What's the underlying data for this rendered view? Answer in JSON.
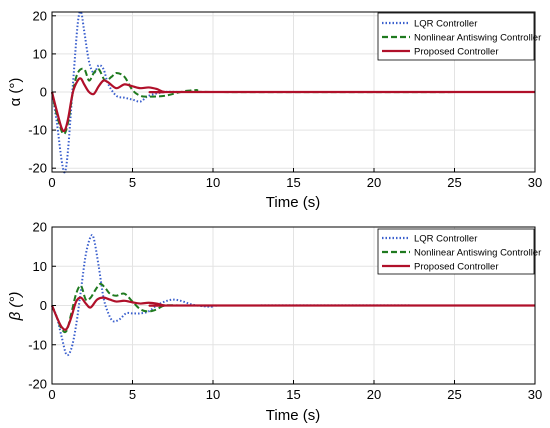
{
  "colors": {
    "lqr": "#3a5fcd",
    "nonlinear": "#1f7a1f",
    "proposed": "#b0102a",
    "grid": "#e3e3e3",
    "axes": "#000000"
  },
  "chart_data": [
    {
      "type": "line",
      "xlabel": "Time (s)",
      "ylabel": "α (°)",
      "xlim": [
        0,
        30
      ],
      "ylim": [
        -21,
        21
      ],
      "xticks": [
        0,
        5,
        10,
        15,
        20,
        25,
        30
      ],
      "yticks": [
        -20,
        -10,
        0,
        10,
        20
      ],
      "grid": true,
      "legend": "top-right",
      "series": [
        {
          "name": "LQR Controller",
          "style": "dotted",
          "x": [
            0,
            0.3,
            0.6,
            0.8,
            1.0,
            1.3,
            1.6,
            1.8,
            2.0,
            2.3,
            2.6,
            2.9,
            3.2,
            3.5,
            4.0,
            4.5,
            5.0,
            5.5,
            6.0,
            7.0,
            8.0,
            10.0,
            30.0
          ],
          "y": [
            0,
            -8,
            -18,
            -21,
            -15,
            2,
            18,
            21,
            16,
            8,
            5,
            7,
            6,
            2,
            -1,
            -1.5,
            -2,
            -2.5,
            -1,
            0,
            0,
            0,
            0
          ]
        },
        {
          "name": "Nonlinear Antiswing Controller",
          "style": "dashed",
          "x": [
            0,
            0.3,
            0.7,
            1.0,
            1.3,
            1.6,
            2.0,
            2.3,
            2.6,
            2.9,
            3.3,
            3.7,
            4.0,
            4.5,
            5.0,
            5.5,
            6.0,
            7.0,
            8.0,
            9.0,
            10.0,
            30.0
          ],
          "y": [
            0,
            -6,
            -11,
            -8,
            0,
            5,
            6,
            3,
            5,
            6,
            3,
            4,
            5,
            4,
            0.5,
            -1,
            -1.2,
            -1,
            0,
            0.5,
            0,
            0
          ]
        },
        {
          "name": "Proposed Controller",
          "style": "solid",
          "x": [
            0,
            0.3,
            0.6,
            0.8,
            1.0,
            1.3,
            1.6,
            1.8,
            2.0,
            2.3,
            2.6,
            2.9,
            3.2,
            3.5,
            4.0,
            4.5,
            5.0,
            5.5,
            6.0,
            6.5,
            7.0,
            8.0,
            30.0
          ],
          "y": [
            0,
            -5,
            -9.5,
            -10,
            -7,
            0,
            3,
            3.5,
            2,
            0,
            -0.5,
            1.5,
            3,
            2.5,
            1,
            2,
            1.5,
            1,
            1.2,
            0.8,
            0,
            0,
            0
          ]
        }
      ]
    },
    {
      "type": "line",
      "xlabel": "Time (s)",
      "ylabel": "β (°)",
      "xlim": [
        0,
        30
      ],
      "ylim": [
        -20,
        20
      ],
      "xticks": [
        0,
        5,
        10,
        15,
        20,
        25,
        30
      ],
      "yticks": [
        -20,
        -10,
        0,
        10,
        20
      ],
      "grid": true,
      "legend": "top-right",
      "series": [
        {
          "name": "LQR Controller",
          "style": "dotted",
          "x": [
            0,
            0.3,
            0.6,
            0.9,
            1.2,
            1.5,
            1.8,
            2.1,
            2.4,
            2.6,
            2.9,
            3.2,
            3.5,
            3.8,
            4.2,
            4.6,
            5.0,
            5.5,
            6.0,
            6.5,
            7.0,
            7.5,
            8.0,
            8.5,
            9.0,
            10.0,
            11.0,
            30.0
          ],
          "y": [
            0,
            -3,
            -8,
            -12.5,
            -11,
            -5,
            4,
            13,
            17.5,
            17,
            10,
            2,
            -2,
            -4,
            -3.5,
            -2,
            -2,
            -2,
            -1.5,
            0,
            1,
            1.5,
            1.2,
            0.5,
            0,
            -0.3,
            0,
            0
          ]
        },
        {
          "name": "Nonlinear Antiswing Controller",
          "style": "dashed",
          "x": [
            0,
            0.3,
            0.6,
            0.9,
            1.2,
            1.5,
            1.8,
            2.1,
            2.4,
            2.7,
            3.0,
            3.3,
            3.6,
            4.0,
            4.5,
            5.0,
            5.5,
            6.0,
            6.5,
            7.0,
            8.0,
            9.0,
            30.0
          ],
          "y": [
            0,
            -3,
            -6,
            -6.5,
            -2,
            3,
            5,
            1.5,
            2,
            4,
            5.5,
            4.5,
            3,
            2.5,
            3,
            1,
            -1,
            -1.5,
            -1,
            0,
            0,
            0,
            0
          ]
        },
        {
          "name": "Proposed Controller",
          "style": "solid",
          "x": [
            0,
            0.3,
            0.6,
            0.9,
            1.2,
            1.5,
            1.8,
            2.1,
            2.4,
            2.8,
            3.2,
            3.6,
            4.0,
            4.5,
            5.0,
            5.5,
            6.0,
            6.5,
            7.0,
            8.0,
            30.0
          ],
          "y": [
            0,
            -3,
            -5.5,
            -6,
            -3,
            1,
            2,
            0.5,
            -0.5,
            1.5,
            2,
            1.5,
            1,
            1.2,
            0.8,
            0.5,
            0.7,
            0.5,
            0,
            0,
            0
          ]
        }
      ]
    }
  ]
}
